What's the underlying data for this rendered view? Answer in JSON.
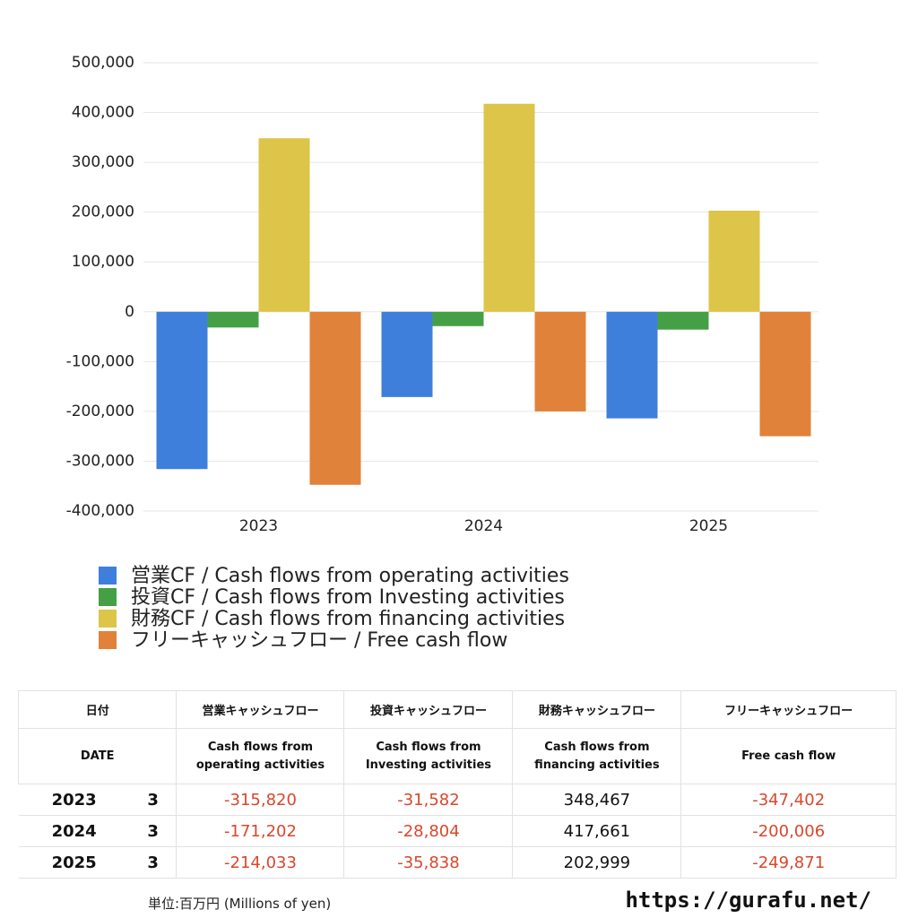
{
  "chart_data": {
    "type": "bar",
    "categories": [
      "2023",
      "2024",
      "2025"
    ],
    "series": [
      {
        "name": "営業CF / Cash flows from operating activities",
        "color": "#3f7fdc",
        "values": [
          -315820,
          -171202,
          -214033
        ]
      },
      {
        "name": "投資CF / Cash flows from Investing activities",
        "color": "#45a045",
        "values": [
          -31582,
          -28804,
          -35838
        ]
      },
      {
        "name": "財務CF / Cash flows from financing activities",
        "color": "#dcc548",
        "values": [
          348467,
          417661,
          202999
        ]
      },
      {
        "name": "フリーキャッシュフロー / Free cash flow",
        "color": "#e0823a",
        "values": [
          -347402,
          -200006,
          -249871
        ]
      }
    ],
    "ylim": [
      -400000,
      500000
    ],
    "yticks": [
      {
        "value": -400000,
        "label": "-400,000"
      },
      {
        "value": -300000,
        "label": "-300,000"
      },
      {
        "value": -200000,
        "label": "-200,000"
      },
      {
        "value": -100000,
        "label": "-100,000"
      },
      0,
      {
        "value": 100000,
        "label": "100,000"
      },
      {
        "value": 200000,
        "label": "200,000"
      },
      {
        "value": 300000,
        "label": "300,000"
      },
      {
        "value": 400000,
        "label": "400,000"
      },
      {
        "value": 500000,
        "label": "500,000"
      }
    ],
    "grid": true
  },
  "table": {
    "header": [
      "日付",
      "営業キャッシュフロー",
      "投資キャッシュフロー",
      "財務キャッシュフロー",
      "フリーキャッシュフロー"
    ],
    "subheader": [
      "DATE",
      "Cash flows from\noperating activities",
      "Cash flows from\nInvesting activities",
      "Cash flows from\nfinancing activities",
      "Free cash flow"
    ],
    "rows": [
      [
        "2023",
        "3",
        "-315,820",
        "-31,582",
        "348,467",
        "-347,402"
      ],
      [
        "2024",
        "3",
        "-171,202",
        "-28,804",
        "417,661",
        "-200,006"
      ],
      [
        "2025",
        "3",
        "-214,033",
        "-35,838",
        "202,999",
        "-249,871"
      ]
    ],
    "negative_color": "#d9472b"
  },
  "footer": {
    "unit": "単位:百万円 (Millions of yen)",
    "site": "https://gurafu.net/"
  }
}
